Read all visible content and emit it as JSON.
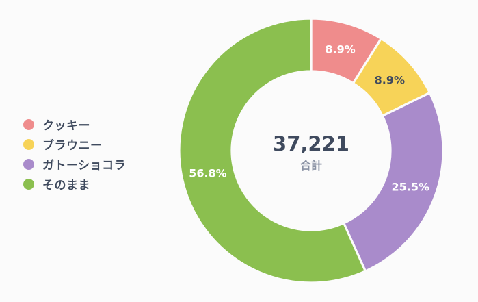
{
  "chart_data": {
    "type": "donut",
    "series": [
      {
        "name": "クッキー",
        "value": 8.9,
        "label": "8.9%",
        "color": "#ef8c8c"
      },
      {
        "name": "ブラウニー",
        "value": 8.9,
        "label": "8.9%",
        "color": "#f7d358"
      },
      {
        "name": "ガトーショコラ",
        "value": 25.5,
        "label": "25.5%",
        "color": "#a98bcb"
      },
      {
        "name": "そのまま",
        "value": 56.8,
        "label": "56.8%",
        "color": "#8bbf4f"
      }
    ],
    "center_value": "37,221",
    "center_label": "合計",
    "legend_position": "left"
  },
  "colors": {
    "label_dark": "#3f4a5e",
    "label_light": "#ffffff",
    "center_sub": "#8a92a4"
  }
}
